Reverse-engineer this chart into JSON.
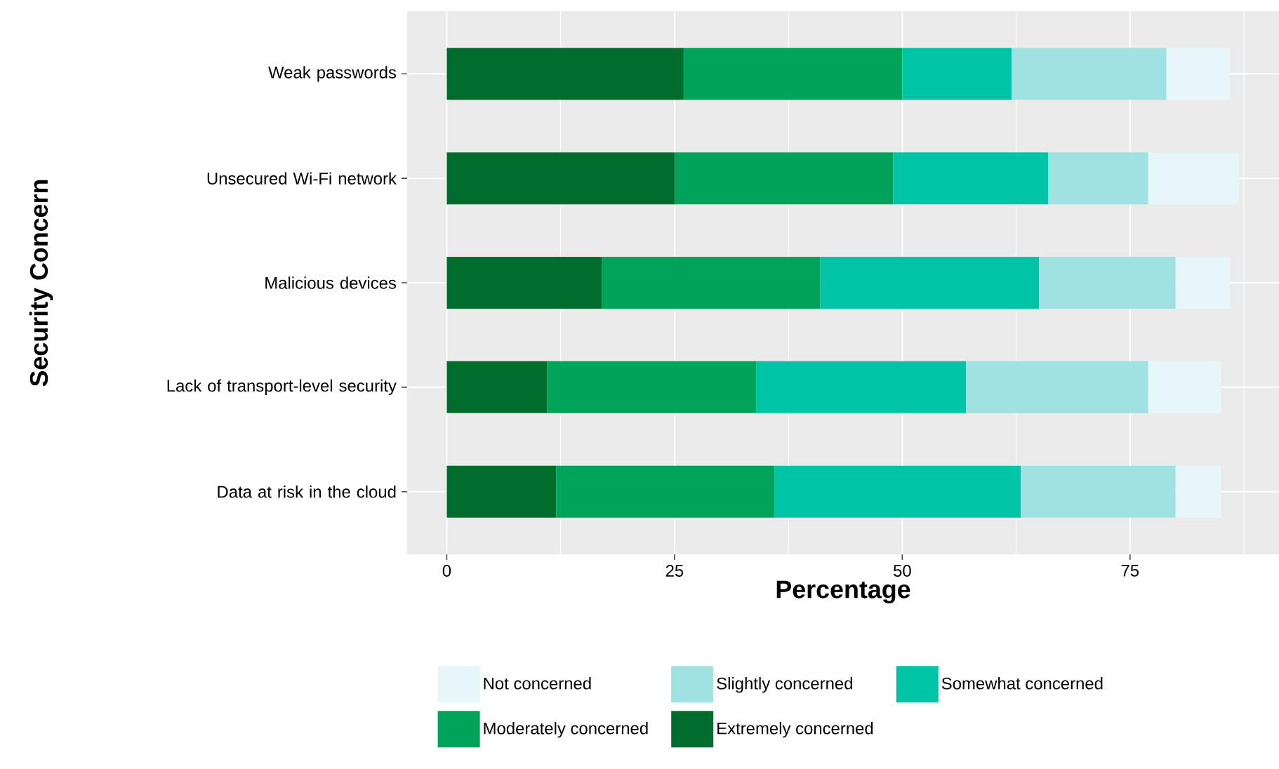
{
  "chart_data": {
    "type": "bar",
    "orientation": "horizontal",
    "stacked": true,
    "xlabel": "Percentage",
    "ylabel": "Security Concern",
    "categories": [
      "Weak passwords",
      "Unsecured Wi-Fi network",
      "Malicious devices",
      "Lack of transport-level security",
      "Data at risk in the cloud"
    ],
    "series": [
      {
        "name": "Extremely concerned",
        "color": "#006d2c",
        "values": [
          26,
          25,
          17,
          11,
          12
        ]
      },
      {
        "name": "Moderately concerned",
        "color": "#00a35a",
        "values": [
          24,
          24,
          24,
          23,
          24
        ]
      },
      {
        "name": "Somewhat concerned",
        "color": "#00c4a6",
        "values": [
          12,
          17,
          24,
          23,
          27
        ]
      },
      {
        "name": "Slightly concerned",
        "color": "#9fe2e1",
        "values": [
          17,
          11,
          15,
          20,
          17
        ]
      },
      {
        "name": "Not concerned",
        "color": "#e6f6f9",
        "values": [
          7,
          10,
          6,
          8,
          5
        ]
      }
    ],
    "xlim": [
      -4.35,
      91.35
    ],
    "xticks": [
      0,
      25,
      50,
      75
    ],
    "grid": true,
    "legend": "bottom"
  }
}
